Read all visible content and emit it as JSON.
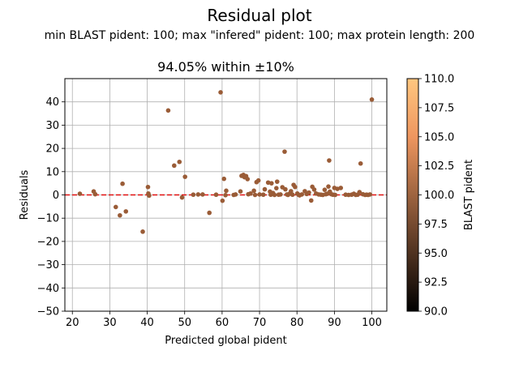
{
  "figure": {
    "title": "Residual plot",
    "subtitle": "min BLAST pident: 100; max \"infered\" pident: 100; max protein length: 200"
  },
  "chart_data": {
    "type": "scatter",
    "title": "94.05% within ±10%",
    "xlabel": "Predicted global pident",
    "ylabel": "Residuals",
    "xlim": [
      18,
      104
    ],
    "ylim": [
      -50,
      50
    ],
    "xticks": [
      20,
      30,
      40,
      50,
      60,
      70,
      80,
      90,
      100
    ],
    "yticks": [
      -50,
      -40,
      -30,
      -20,
      -10,
      0,
      10,
      20,
      30,
      40
    ],
    "grid": true,
    "reference_line": {
      "y": 0,
      "color": "#e01010",
      "style": "dashed"
    },
    "point_color": "#9a5c37",
    "colorbar": {
      "label": "BLAST pident",
      "range": [
        90,
        110
      ],
      "ticks": [
        90.0,
        92.5,
        95.0,
        97.5,
        100.0,
        102.5,
        105.0,
        107.5,
        110.0
      ],
      "tick_labels": [
        "90.0",
        "92.5",
        "95.0",
        "97.5",
        "100.0",
        "102.5",
        "105.0",
        "107.5",
        "110.0"
      ],
      "colormap": "copper"
    },
    "points": [
      {
        "x": 22,
        "y": 0.5
      },
      {
        "x": 25.7,
        "y": 1.5
      },
      {
        "x": 26.1,
        "y": 0.3
      },
      {
        "x": 31.6,
        "y": -5.2
      },
      {
        "x": 32.7,
        "y": -8.8
      },
      {
        "x": 33.4,
        "y": 4.8
      },
      {
        "x": 34.3,
        "y": -7.1
      },
      {
        "x": 38.8,
        "y": -15.8
      },
      {
        "x": 40.2,
        "y": 3.4
      },
      {
        "x": 40.3,
        "y": 0.6
      },
      {
        "x": 40.5,
        "y": -0.3
      },
      {
        "x": 45.6,
        "y": 36.3
      },
      {
        "x": 47.2,
        "y": 12.6
      },
      {
        "x": 48.6,
        "y": 14.2
      },
      {
        "x": 49.3,
        "y": -1.1
      },
      {
        "x": 50.1,
        "y": 7.8
      },
      {
        "x": 52.3,
        "y": 0.1
      },
      {
        "x": 53.6,
        "y": 0.2
      },
      {
        "x": 54.8,
        "y": 0.2
      },
      {
        "x": 56.6,
        "y": -7.7
      },
      {
        "x": 58.4,
        "y": 0.1
      },
      {
        "x": 59.6,
        "y": 44.1
      },
      {
        "x": 60.1,
        "y": -2.5
      },
      {
        "x": 60.5,
        "y": 6.9
      },
      {
        "x": 61.1,
        "y": 1.8
      },
      {
        "x": 60.9,
        "y": -0.1
      },
      {
        "x": 63.1,
        "y": 0.0
      },
      {
        "x": 63.6,
        "y": 0.2
      },
      {
        "x": 64.9,
        "y": 1.5
      },
      {
        "x": 65.2,
        "y": 8.2
      },
      {
        "x": 65.7,
        "y": 8.6
      },
      {
        "x": 66.0,
        "y": 7.6
      },
      {
        "x": 66.4,
        "y": 8.1
      },
      {
        "x": 66.8,
        "y": 6.8
      },
      {
        "x": 67.0,
        "y": 0.3
      },
      {
        "x": 67.6,
        "y": 0.6
      },
      {
        "x": 68.5,
        "y": 1.8
      },
      {
        "x": 68.8,
        "y": 0.0
      },
      {
        "x": 69.2,
        "y": 5.5
      },
      {
        "x": 69.7,
        "y": 6.2
      },
      {
        "x": 70.0,
        "y": 0.2
      },
      {
        "x": 71.0,
        "y": 0.1
      },
      {
        "x": 71.4,
        "y": 2.4
      },
      {
        "x": 72.3,
        "y": 5.3
      },
      {
        "x": 72.8,
        "y": 1.4
      },
      {
        "x": 73.0,
        "y": 0.1
      },
      {
        "x": 73.2,
        "y": 5.0
      },
      {
        "x": 73.6,
        "y": 0.8
      },
      {
        "x": 74.0,
        "y": 0.0
      },
      {
        "x": 74.5,
        "y": 2.9
      },
      {
        "x": 74.7,
        "y": 5.7
      },
      {
        "x": 75.1,
        "y": 0.1
      },
      {
        "x": 75.6,
        "y": 0.2
      },
      {
        "x": 76.1,
        "y": 3.3
      },
      {
        "x": 76.7,
        "y": 18.6
      },
      {
        "x": 76.9,
        "y": 2.4
      },
      {
        "x": 77.3,
        "y": 0.2
      },
      {
        "x": 77.6,
        "y": 0.0
      },
      {
        "x": 78.0,
        "y": 0.5
      },
      {
        "x": 78.4,
        "y": 1.6
      },
      {
        "x": 78.8,
        "y": 0.1
      },
      {
        "x": 79.1,
        "y": 4.3
      },
      {
        "x": 79.5,
        "y": 3.4
      },
      {
        "x": 80.1,
        "y": 0.6
      },
      {
        "x": 80.4,
        "y": 0.1
      },
      {
        "x": 80.7,
        "y": -0.2
      },
      {
        "x": 81.3,
        "y": 0.2
      },
      {
        "x": 82.1,
        "y": 1.6
      },
      {
        "x": 82.6,
        "y": 0.4
      },
      {
        "x": 83.2,
        "y": 1.0
      },
      {
        "x": 83.8,
        "y": -2.4
      },
      {
        "x": 84.1,
        "y": 3.5
      },
      {
        "x": 84.6,
        "y": 2.3
      },
      {
        "x": 85.1,
        "y": 0.6
      },
      {
        "x": 85.8,
        "y": 0.2
      },
      {
        "x": 86.4,
        "y": 0.1
      },
      {
        "x": 86.9,
        "y": 0.0
      },
      {
        "x": 87.4,
        "y": 2.2
      },
      {
        "x": 87.7,
        "y": 0.3
      },
      {
        "x": 88.1,
        "y": 0.5
      },
      {
        "x": 88.4,
        "y": 3.6
      },
      {
        "x": 88.6,
        "y": 14.8
      },
      {
        "x": 88.8,
        "y": 1.4
      },
      {
        "x": 89.2,
        "y": 0.3
      },
      {
        "x": 89.6,
        "y": 0.1
      },
      {
        "x": 90.0,
        "y": 3.0
      },
      {
        "x": 90.2,
        "y": 0.0
      },
      {
        "x": 90.8,
        "y": 2.6
      },
      {
        "x": 91.7,
        "y": 3.0
      },
      {
        "x": 93.0,
        "y": 0.1
      },
      {
        "x": 93.8,
        "y": 0.0
      },
      {
        "x": 94.6,
        "y": 0.1
      },
      {
        "x": 95.2,
        "y": 0.5
      },
      {
        "x": 95.7,
        "y": 0.0
      },
      {
        "x": 96.2,
        "y": 0.1
      },
      {
        "x": 96.7,
        "y": 1.2
      },
      {
        "x": 97.0,
        "y": 13.5
      },
      {
        "x": 97.6,
        "y": 0.3
      },
      {
        "x": 98.2,
        "y": 0.0
      },
      {
        "x": 98.6,
        "y": 0.1
      },
      {
        "x": 99.0,
        "y": 0.0
      },
      {
        "x": 99.5,
        "y": 0.2
      },
      {
        "x": 100.0,
        "y": 41.0
      }
    ]
  }
}
